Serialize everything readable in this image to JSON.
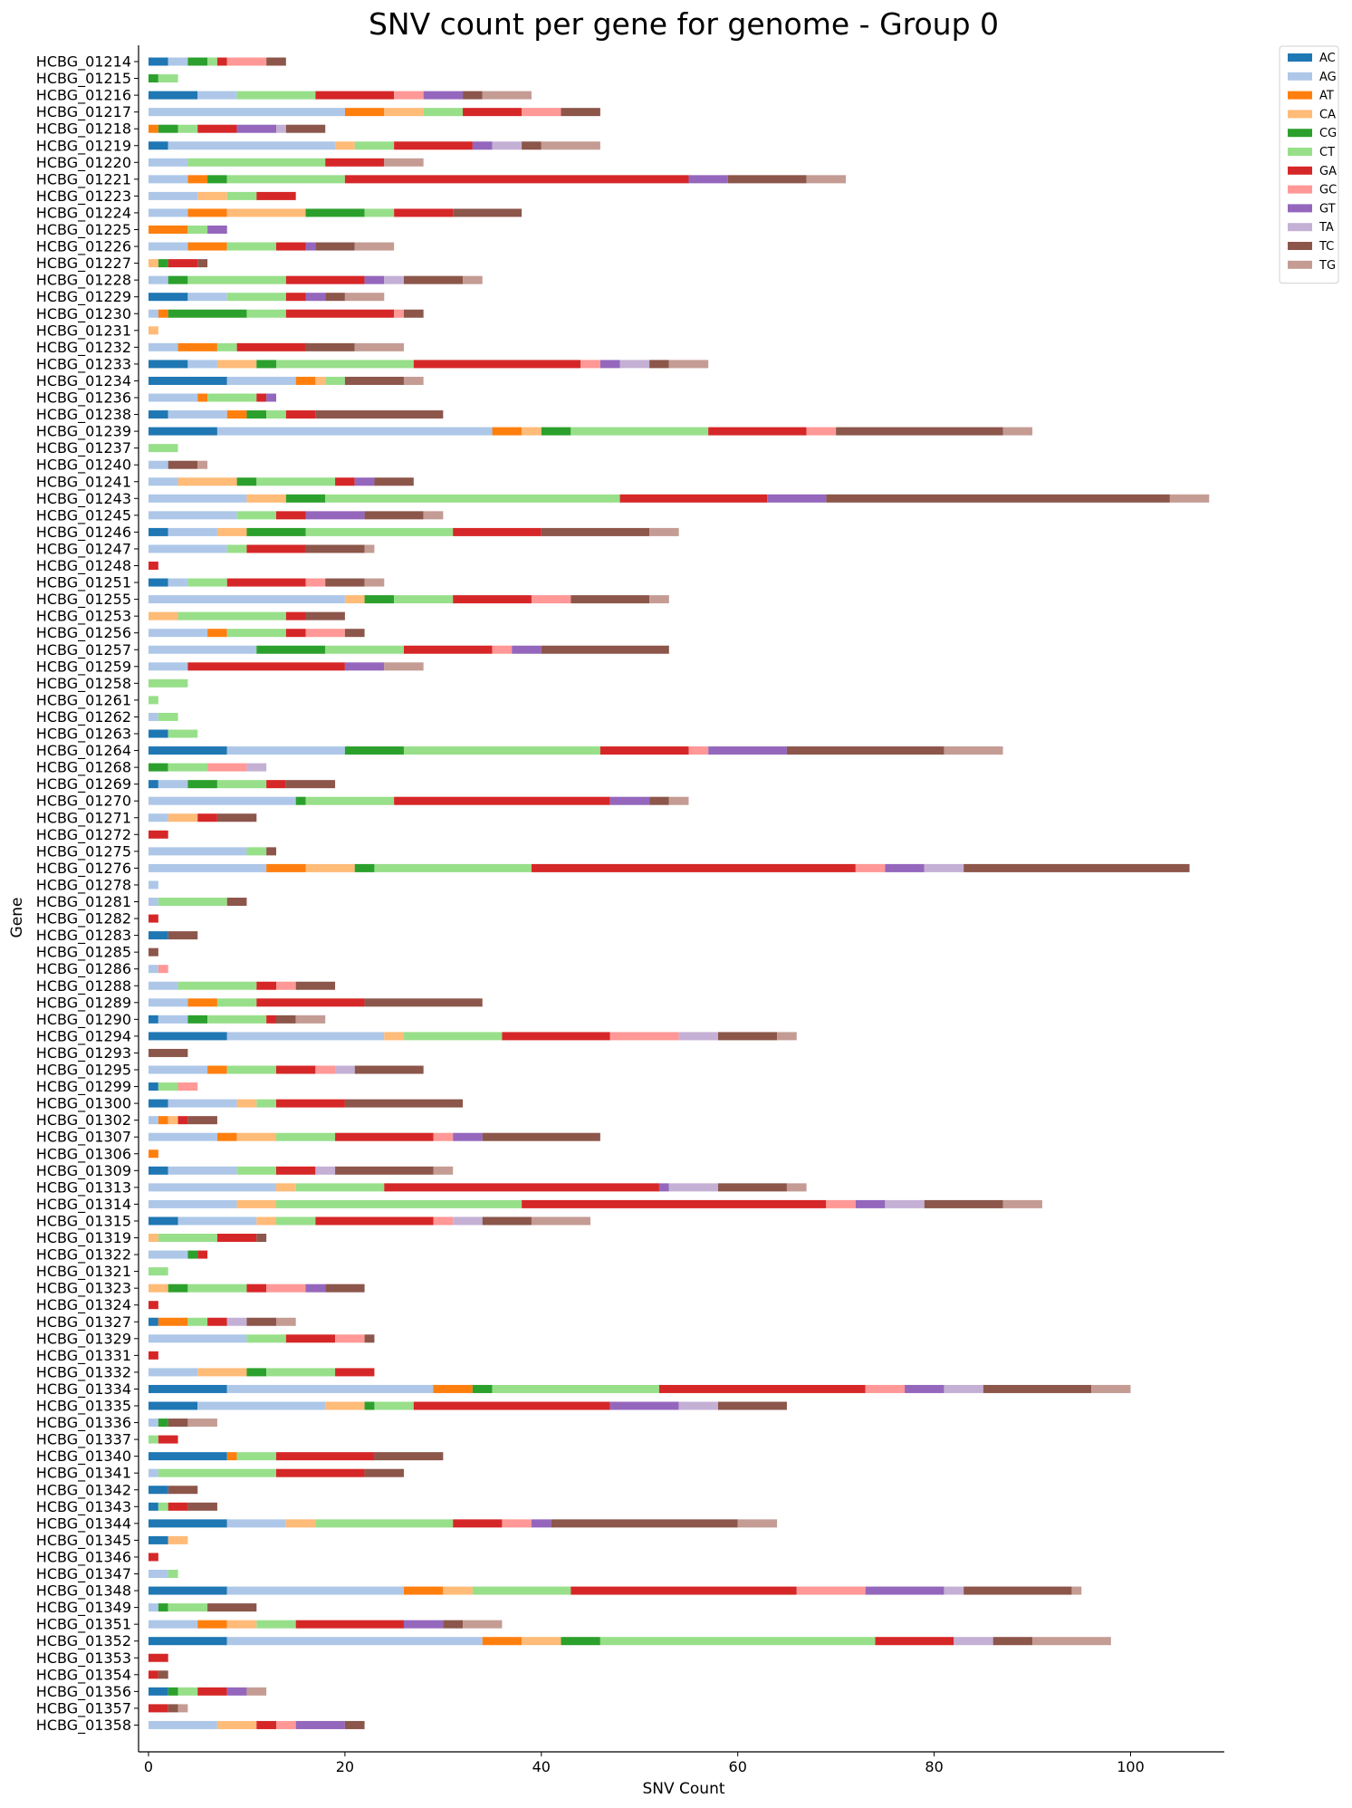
{
  "chart_data": {
    "type": "bar",
    "orientation": "horizontal",
    "stacked": true,
    "title": "SNV count per gene for genome - Group 0",
    "xlabel": "SNV Count",
    "ylabel": "Gene",
    "xlim": [
      -1,
      109
    ],
    "xticks": [
      0,
      20,
      40,
      60,
      80,
      100
    ],
    "grid": false,
    "legend_position": "top-right, outside plot",
    "series_names": [
      "AC",
      "AG",
      "AT",
      "CA",
      "CG",
      "CT",
      "GA",
      "GC",
      "GT",
      "TA",
      "TC",
      "TG"
    ],
    "colors": [
      "#1f77b4",
      "#aec7e8",
      "#ff7f0e",
      "#ffbb78",
      "#2ca02c",
      "#98df8a",
      "#d62728",
      "#ff9896",
      "#9467bd",
      "#c5b0d5",
      "#8c564b",
      "#c49c94"
    ],
    "categories": [
      "HCBG_01214",
      "HCBG_01215",
      "HCBG_01216",
      "HCBG_01217",
      "HCBG_01218",
      "HCBG_01219",
      "HCBG_01220",
      "HCBG_01221",
      "HCBG_01223",
      "HCBG_01224",
      "HCBG_01225",
      "HCBG_01226",
      "HCBG_01227",
      "HCBG_01228",
      "HCBG_01229",
      "HCBG_01230",
      "HCBG_01231",
      "HCBG_01232",
      "HCBG_01233",
      "HCBG_01234",
      "HCBG_01236",
      "HCBG_01238",
      "HCBG_01239",
      "HCBG_01237",
      "HCBG_01240",
      "HCBG_01241",
      "HCBG_01243",
      "HCBG_01245",
      "HCBG_01246",
      "HCBG_01247",
      "HCBG_01248",
      "HCBG_01251",
      "HCBG_01255",
      "HCBG_01253",
      "HCBG_01256",
      "HCBG_01257",
      "HCBG_01259",
      "HCBG_01258",
      "HCBG_01261",
      "HCBG_01262",
      "HCBG_01263",
      "HCBG_01264",
      "HCBG_01268",
      "HCBG_01269",
      "HCBG_01270",
      "HCBG_01271",
      "HCBG_01272",
      "HCBG_01275",
      "HCBG_01276",
      "HCBG_01278",
      "HCBG_01281",
      "HCBG_01282",
      "HCBG_01283",
      "HCBG_01285",
      "HCBG_01286",
      "HCBG_01288",
      "HCBG_01289",
      "HCBG_01290",
      "HCBG_01294",
      "HCBG_01293",
      "HCBG_01295",
      "HCBG_01299",
      "HCBG_01300",
      "HCBG_01302",
      "HCBG_01307",
      "HCBG_01306",
      "HCBG_01309",
      "HCBG_01313",
      "HCBG_01314",
      "HCBG_01315",
      "HCBG_01319",
      "HCBG_01322",
      "HCBG_01321",
      "HCBG_01323",
      "HCBG_01324",
      "HCBG_01327",
      "HCBG_01329",
      "HCBG_01331",
      "HCBG_01332",
      "HCBG_01334",
      "HCBG_01335",
      "HCBG_01336",
      "HCBG_01337",
      "HCBG_01340",
      "HCBG_01341",
      "HCBG_01342",
      "HCBG_01343",
      "HCBG_01344",
      "HCBG_01345",
      "HCBG_01346",
      "HCBG_01347",
      "HCBG_01348",
      "HCBG_01349",
      "HCBG_01351",
      "HCBG_01352",
      "HCBG_01353",
      "HCBG_01354",
      "HCBG_01356",
      "HCBG_01357",
      "HCBG_01358"
    ],
    "values": [
      [
        2,
        2,
        0,
        0,
        2,
        1,
        1,
        4,
        0,
        0,
        2,
        0
      ],
      [
        0,
        0,
        0,
        0,
        1,
        2,
        0,
        0,
        0,
        0,
        0,
        0
      ],
      [
        5,
        4,
        0,
        0,
        0,
        8,
        8,
        3,
        4,
        0,
        2,
        5
      ],
      [
        0,
        20,
        4,
        4,
        0,
        4,
        6,
        4,
        0,
        0,
        4,
        0
      ],
      [
        0,
        0,
        1,
        0,
        2,
        2,
        4,
        0,
        4,
        1,
        4,
        0
      ],
      [
        2,
        17,
        0,
        2,
        0,
        4,
        8,
        0,
        2,
        3,
        2,
        6
      ],
      [
        0,
        4,
        0,
        0,
        0,
        14,
        6,
        0,
        0,
        0,
        0,
        4
      ],
      [
        0,
        4,
        2,
        0,
        2,
        12,
        35,
        0,
        4,
        0,
        8,
        4
      ],
      [
        0,
        5,
        0,
        3,
        0,
        3,
        4,
        0,
        0,
        0,
        0,
        0
      ],
      [
        0,
        4,
        4,
        8,
        6,
        3,
        6,
        0,
        0,
        0,
        7,
        0
      ],
      [
        0,
        0,
        4,
        0,
        0,
        2,
        0,
        0,
        2,
        0,
        0,
        0
      ],
      [
        0,
        4,
        4,
        0,
        0,
        5,
        3,
        0,
        1,
        0,
        4,
        4
      ],
      [
        0,
        0,
        0,
        1,
        1,
        0,
        3,
        0,
        0,
        0,
        1,
        0
      ],
      [
        0,
        2,
        0,
        0,
        2,
        10,
        8,
        0,
        2,
        2,
        6,
        2
      ],
      [
        4,
        4,
        0,
        0,
        0,
        6,
        2,
        0,
        2,
        0,
        2,
        4
      ],
      [
        0,
        1,
        1,
        0,
        8,
        4,
        11,
        1,
        0,
        0,
        2,
        0
      ],
      [
        0,
        0,
        0,
        1,
        0,
        0,
        0,
        0,
        0,
        0,
        0,
        0
      ],
      [
        0,
        3,
        4,
        0,
        0,
        2,
        7,
        0,
        0,
        0,
        5,
        5
      ],
      [
        4,
        3,
        0,
        4,
        2,
        14,
        17,
        2,
        2,
        3,
        2,
        4
      ],
      [
        8,
        7,
        2,
        1,
        0,
        2,
        0,
        0,
        0,
        0,
        6,
        2
      ],
      [
        0,
        5,
        1,
        0,
        0,
        5,
        1,
        0,
        1,
        0,
        0,
        0
      ],
      [
        2,
        6,
        2,
        0,
        2,
        2,
        3,
        0,
        0,
        0,
        13,
        0
      ],
      [
        7,
        28,
        3,
        2,
        3,
        14,
        10,
        3,
        0,
        0,
        17,
        3
      ],
      [
        0,
        0,
        0,
        0,
        0,
        3,
        0,
        0,
        0,
        0,
        0,
        0
      ],
      [
        0,
        2,
        0,
        0,
        0,
        0,
        0,
        0,
        0,
        0,
        3,
        1
      ],
      [
        0,
        3,
        0,
        6,
        2,
        8,
        2,
        0,
        2,
        0,
        4,
        0
      ],
      [
        0,
        10,
        0,
        4,
        4,
        30,
        15,
        0,
        6,
        0,
        35,
        4
      ],
      [
        0,
        9,
        0,
        0,
        0,
        4,
        3,
        0,
        6,
        0,
        6,
        2
      ],
      [
        2,
        5,
        0,
        3,
        6,
        15,
        9,
        0,
        0,
        0,
        11,
        3
      ],
      [
        0,
        8,
        0,
        0,
        0,
        2,
        6,
        0,
        0,
        0,
        6,
        1
      ],
      [
        0,
        0,
        0,
        0,
        0,
        0,
        1,
        0,
        0,
        0,
        0,
        0
      ],
      [
        2,
        2,
        0,
        0,
        0,
        4,
        8,
        2,
        0,
        0,
        4,
        2
      ],
      [
        0,
        20,
        0,
        2,
        3,
        6,
        8,
        4,
        0,
        0,
        8,
        2
      ],
      [
        0,
        0,
        0,
        3,
        0,
        11,
        2,
        0,
        0,
        0,
        4,
        0
      ],
      [
        0,
        6,
        2,
        0,
        0,
        6,
        2,
        4,
        0,
        0,
        2,
        0
      ],
      [
        0,
        11,
        0,
        0,
        7,
        8,
        9,
        2,
        3,
        0,
        13,
        0
      ],
      [
        0,
        4,
        0,
        0,
        0,
        0,
        16,
        0,
        4,
        0,
        0,
        4
      ],
      [
        0,
        0,
        0,
        0,
        0,
        4,
        0,
        0,
        0,
        0,
        0,
        0
      ],
      [
        0,
        0,
        0,
        0,
        0,
        1,
        0,
        0,
        0,
        0,
        0,
        0
      ],
      [
        0,
        1,
        0,
        0,
        0,
        2,
        0,
        0,
        0,
        0,
        0,
        0
      ],
      [
        2,
        0,
        0,
        0,
        0,
        3,
        0,
        0,
        0,
        0,
        0,
        0
      ],
      [
        8,
        12,
        0,
        0,
        6,
        20,
        9,
        2,
        8,
        0,
        16,
        6
      ],
      [
        0,
        0,
        0,
        0,
        2,
        4,
        0,
        4,
        0,
        2,
        0,
        0
      ],
      [
        1,
        3,
        0,
        0,
        3,
        5,
        2,
        0,
        0,
        0,
        5,
        0
      ],
      [
        0,
        15,
        0,
        0,
        1,
        9,
        22,
        0,
        4,
        0,
        2,
        2
      ],
      [
        0,
        2,
        0,
        3,
        0,
        0,
        2,
        0,
        0,
        0,
        4,
        0
      ],
      [
        0,
        0,
        0,
        0,
        0,
        0,
        2,
        0,
        0,
        0,
        0,
        0
      ],
      [
        0,
        10,
        0,
        0,
        0,
        2,
        0,
        0,
        0,
        0,
        1,
        0
      ],
      [
        0,
        12,
        4,
        5,
        2,
        16,
        33,
        3,
        4,
        4,
        23,
        0
      ],
      [
        0,
        1,
        0,
        0,
        0,
        0,
        0,
        0,
        0,
        0,
        0,
        0
      ],
      [
        0,
        1,
        0,
        0,
        0,
        7,
        0,
        0,
        0,
        0,
        2,
        0
      ],
      [
        0,
        0,
        0,
        0,
        0,
        0,
        1,
        0,
        0,
        0,
        0,
        0
      ],
      [
        2,
        0,
        0,
        0,
        0,
        0,
        0,
        0,
        0,
        0,
        3,
        0
      ],
      [
        0,
        0,
        0,
        0,
        0,
        0,
        0,
        0,
        0,
        0,
        1,
        0
      ],
      [
        0,
        1,
        0,
        0,
        0,
        0,
        0,
        1,
        0,
        0,
        0,
        0
      ],
      [
        0,
        3,
        0,
        0,
        0,
        8,
        2,
        2,
        0,
        0,
        4,
        0
      ],
      [
        0,
        4,
        3,
        0,
        0,
        4,
        11,
        0,
        0,
        0,
        12,
        0
      ],
      [
        1,
        3,
        0,
        0,
        2,
        6,
        1,
        0,
        0,
        0,
        2,
        3
      ],
      [
        8,
        16,
        0,
        2,
        0,
        10,
        11,
        7,
        0,
        4,
        6,
        2
      ],
      [
        0,
        0,
        0,
        0,
        0,
        0,
        0,
        0,
        0,
        0,
        4,
        0
      ],
      [
        0,
        6,
        2,
        0,
        0,
        5,
        4,
        2,
        0,
        2,
        7,
        0
      ],
      [
        1,
        0,
        0,
        0,
        0,
        2,
        0,
        2,
        0,
        0,
        0,
        0
      ],
      [
        2,
        7,
        0,
        2,
        0,
        2,
        7,
        0,
        0,
        0,
        12,
        0
      ],
      [
        0,
        1,
        1,
        1,
        0,
        0,
        1,
        0,
        0,
        0,
        3,
        0
      ],
      [
        0,
        7,
        2,
        4,
        0,
        6,
        10,
        2,
        3,
        0,
        12,
        0
      ],
      [
        0,
        0,
        1,
        0,
        0,
        0,
        0,
        0,
        0,
        0,
        0,
        0
      ],
      [
        2,
        7,
        0,
        0,
        0,
        4,
        4,
        0,
        0,
        2,
        10,
        2
      ],
      [
        0,
        13,
        0,
        2,
        0,
        9,
        28,
        0,
        1,
        5,
        7,
        2
      ],
      [
        0,
        9,
        0,
        4,
        0,
        25,
        31,
        3,
        3,
        4,
        8,
        4
      ],
      [
        3,
        8,
        0,
        2,
        0,
        4,
        12,
        2,
        0,
        3,
        5,
        6
      ],
      [
        0,
        0,
        0,
        1,
        0,
        6,
        4,
        0,
        0,
        0,
        1,
        0
      ],
      [
        0,
        4,
        0,
        0,
        1,
        0,
        1,
        0,
        0,
        0,
        0,
        0
      ],
      [
        0,
        0,
        0,
        0,
        0,
        2,
        0,
        0,
        0,
        0,
        0,
        0
      ],
      [
        0,
        0,
        0,
        2,
        2,
        6,
        2,
        4,
        2,
        0,
        4,
        0
      ],
      [
        0,
        0,
        0,
        0,
        0,
        0,
        1,
        0,
        0,
        0,
        0,
        0
      ],
      [
        1,
        0,
        3,
        0,
        0,
        2,
        2,
        0,
        0,
        2,
        3,
        2
      ],
      [
        0,
        10,
        0,
        0,
        0,
        4,
        5,
        3,
        0,
        0,
        1,
        0
      ],
      [
        0,
        0,
        0,
        0,
        0,
        0,
        1,
        0,
        0,
        0,
        0,
        0
      ],
      [
        0,
        5,
        0,
        5,
        2,
        7,
        4,
        0,
        0,
        0,
        0,
        0
      ],
      [
        8,
        21,
        4,
        0,
        2,
        17,
        21,
        4,
        4,
        4,
        11,
        4
      ],
      [
        5,
        13,
        0,
        4,
        1,
        4,
        20,
        0,
        7,
        4,
        7,
        0
      ],
      [
        0,
        1,
        0,
        0,
        1,
        0,
        0,
        0,
        0,
        0,
        2,
        3
      ],
      [
        0,
        0,
        0,
        0,
        0,
        1,
        2,
        0,
        0,
        0,
        0,
        0
      ],
      [
        8,
        0,
        1,
        0,
        0,
        4,
        10,
        0,
        0,
        0,
        7,
        0
      ],
      [
        0,
        1,
        0,
        0,
        0,
        12,
        9,
        0,
        0,
        0,
        4,
        0
      ],
      [
        2,
        0,
        0,
        0,
        0,
        0,
        0,
        0,
        0,
        0,
        3,
        0
      ],
      [
        1,
        0,
        0,
        0,
        0,
        1,
        2,
        0,
        0,
        0,
        3,
        0
      ],
      [
        8,
        6,
        0,
        3,
        0,
        14,
        5,
        3,
        2,
        0,
        19,
        4
      ],
      [
        2,
        0,
        0,
        2,
        0,
        0,
        0,
        0,
        0,
        0,
        0,
        0
      ],
      [
        0,
        0,
        0,
        0,
        0,
        0,
        1,
        0,
        0,
        0,
        0,
        0
      ],
      [
        0,
        2,
        0,
        0,
        0,
        1,
        0,
        0,
        0,
        0,
        0,
        0
      ],
      [
        8,
        18,
        4,
        3,
        0,
        10,
        23,
        7,
        8,
        2,
        11,
        1
      ],
      [
        0,
        1,
        0,
        0,
        1,
        4,
        0,
        0,
        0,
        0,
        5,
        0
      ],
      [
        0,
        5,
        3,
        3,
        0,
        4,
        11,
        0,
        4,
        0,
        2,
        4
      ],
      [
        8,
        26,
        4,
        4,
        4,
        28,
        8,
        0,
        0,
        4,
        4,
        8
      ],
      [
        0,
        0,
        0,
        0,
        0,
        0,
        2,
        0,
        0,
        0,
        0,
        0
      ],
      [
        0,
        0,
        0,
        0,
        0,
        0,
        1,
        0,
        0,
        0,
        1,
        0
      ],
      [
        2,
        0,
        0,
        0,
        1,
        2,
        3,
        0,
        2,
        0,
        0,
        2
      ],
      [
        0,
        0,
        0,
        0,
        0,
        0,
        2,
        0,
        0,
        0,
        1,
        1
      ],
      [
        0,
        7,
        0,
        4,
        0,
        0,
        2,
        2,
        5,
        0,
        2,
        0
      ]
    ]
  }
}
